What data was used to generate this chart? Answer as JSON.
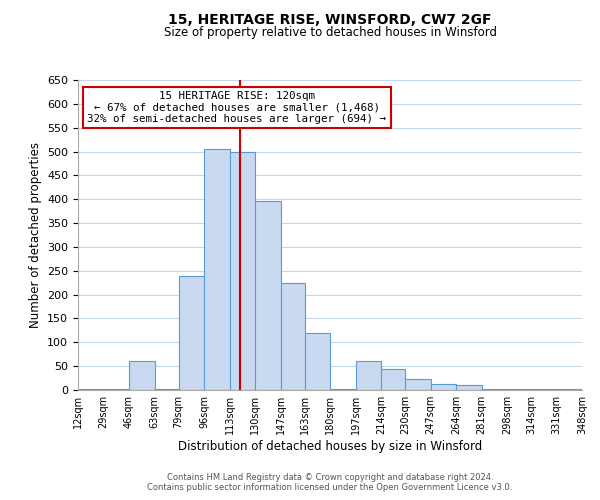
{
  "title1": "15, HERITAGE RISE, WINSFORD, CW7 2GF",
  "title2": "Size of property relative to detached houses in Winsford",
  "xlabel": "Distribution of detached houses by size in Winsford",
  "ylabel": "Number of detached properties",
  "bin_edges": [
    12,
    29,
    46,
    63,
    79,
    96,
    113,
    130,
    147,
    163,
    180,
    197,
    214,
    230,
    247,
    264,
    281,
    298,
    314,
    331,
    348
  ],
  "bar_heights": [
    3,
    3,
    60,
    3,
    240,
    505,
    500,
    397,
    225,
    120,
    3,
    60,
    45,
    23,
    12,
    10,
    3,
    3,
    3,
    3
  ],
  "bar_color": "#c8d9f0",
  "bar_edge_color": "#5b9bd5",
  "vline_x": 120,
  "vline_color": "#cc0000",
  "annotation_lines": [
    "15 HERITAGE RISE: 120sqm",
    "← 67% of detached houses are smaller (1,468)",
    "32% of semi-detached houses are larger (694) →"
  ],
  "annotation_box_edge": "#cc0000",
  "ylim": [
    0,
    650
  ],
  "yticks": [
    0,
    50,
    100,
    150,
    200,
    250,
    300,
    350,
    400,
    450,
    500,
    550,
    600,
    650
  ],
  "footnote1": "Contains HM Land Registry data © Crown copyright and database right 2024.",
  "footnote2": "Contains public sector information licensed under the Open Government Licence v3.0.",
  "bg_color": "#ffffff",
  "grid_color": "#c8d8ec"
}
